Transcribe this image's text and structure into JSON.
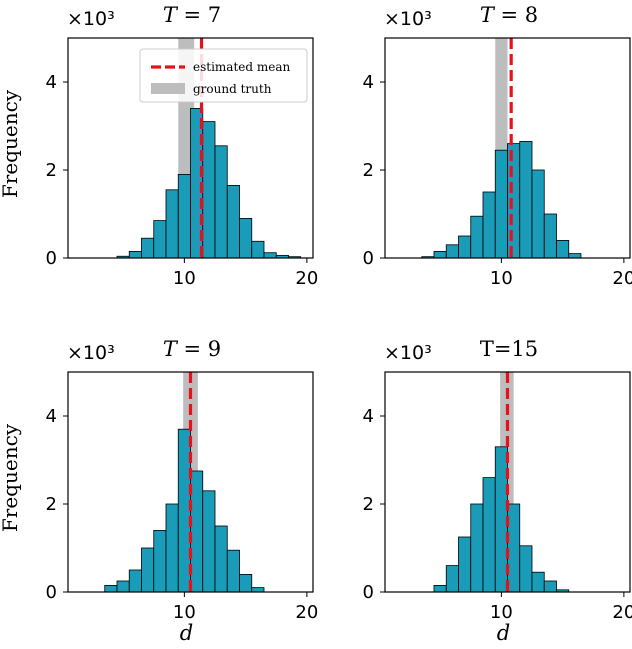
{
  "chart_data": [
    {
      "type": "bar",
      "title": "T = 7",
      "title_var": "T",
      "title_value": "7",
      "title_italic": true,
      "scale_label": "×10³",
      "ylabel": "Frequency",
      "xlabel": "",
      "xlim": [
        0.5,
        20.5
      ],
      "ylim": [
        0,
        5000
      ],
      "xticks": [
        10,
        20
      ],
      "yticks": [
        0,
        2000,
        4000
      ],
      "ytick_labels": [
        "0",
        "2",
        "4"
      ],
      "bin_width": 1,
      "bins": [
        5,
        6,
        7,
        8,
        9,
        10,
        11,
        12,
        13,
        14,
        15,
        16,
        17,
        18,
        19
      ],
      "values": [
        40,
        150,
        450,
        850,
        1550,
        1900,
        3400,
        3100,
        2550,
        1650,
        900,
        380,
        120,
        60,
        30
      ],
      "estimated_mean": 11.4,
      "ground_truth": [
        9.5,
        10.8
      ],
      "legend": {
        "estimated_mean": "estimated mean",
        "ground_truth": "ground truth"
      }
    },
    {
      "type": "bar",
      "title": "T = 8",
      "title_var": "T",
      "title_value": "8",
      "title_italic": true,
      "scale_label": "×10³",
      "ylabel": "",
      "xlabel": "",
      "xlim": [
        0.5,
        20.5
      ],
      "ylim": [
        0,
        5000
      ],
      "xticks": [
        10,
        20
      ],
      "yticks": [
        0,
        2000,
        4000
      ],
      "ytick_labels": [
        "0",
        "2",
        "4"
      ],
      "bin_width": 1,
      "bins": [
        4,
        5,
        6,
        7,
        8,
        9,
        10,
        11,
        12,
        13,
        14,
        15,
        16
      ],
      "values": [
        30,
        150,
        300,
        500,
        950,
        1500,
        2450,
        2600,
        2650,
        2000,
        1000,
        400,
        100
      ],
      "estimated_mean": 10.8,
      "ground_truth": [
        9.5,
        10.5
      ]
    },
    {
      "type": "bar",
      "title": "T = 9",
      "title_var": "T",
      "title_value": "9",
      "title_italic": true,
      "scale_label": "×10³",
      "ylabel": "Frequency",
      "xlabel": "d",
      "xlim": [
        0.5,
        20.5
      ],
      "ylim": [
        0,
        5000
      ],
      "xticks": [
        10,
        20
      ],
      "yticks": [
        0,
        2000,
        4000
      ],
      "ytick_labels": [
        "0",
        "2",
        "4"
      ],
      "bin_width": 1,
      "bins": [
        4,
        5,
        6,
        7,
        8,
        9,
        10,
        11,
        12,
        13,
        14,
        15,
        16
      ],
      "values": [
        150,
        250,
        500,
        1000,
        1400,
        2000,
        3700,
        2750,
        2300,
        1500,
        950,
        400,
        100
      ],
      "estimated_mean": 10.5,
      "ground_truth": [
        9.9,
        11.1
      ]
    },
    {
      "type": "bar",
      "title": "T=15",
      "title_var": "T",
      "title_value": "15",
      "title_italic": false,
      "scale_label": "×10³",
      "ylabel": "",
      "xlabel": "d",
      "xlim": [
        0.5,
        20.5
      ],
      "ylim": [
        0,
        5000
      ],
      "xticks": [
        10,
        20
      ],
      "yticks": [
        0,
        2000,
        4000
      ],
      "ytick_labels": [
        "0",
        "2",
        "4"
      ],
      "bin_width": 1,
      "bins": [
        5,
        6,
        7,
        8,
        9,
        10,
        11,
        12,
        13,
        14,
        15
      ],
      "values": [
        150,
        600,
        1250,
        2000,
        2600,
        3300,
        2000,
        1050,
        450,
        250,
        50
      ],
      "estimated_mean": 10.5,
      "ground_truth": [
        9.9,
        11.0
      ]
    }
  ],
  "colors": {
    "bar_fill": "#1a9bb7",
    "bar_edge": "#000000",
    "mean_line": "#e8101a",
    "ground_truth": "#bdbdbd"
  }
}
